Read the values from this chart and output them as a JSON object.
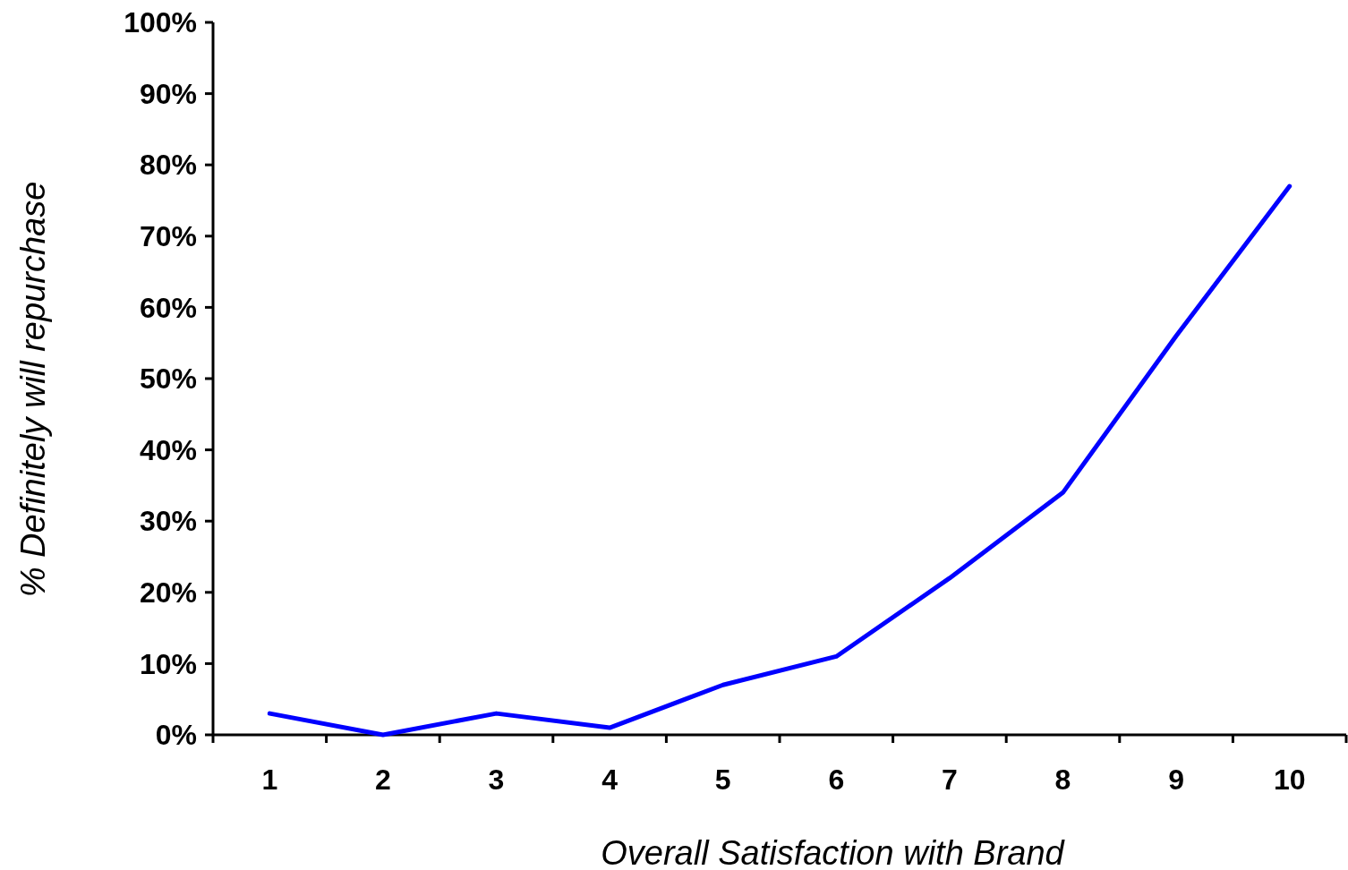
{
  "chart_data": {
    "type": "line",
    "xlabel": "Overall Satisfaction with Brand",
    "ylabel": "% Definitely will repurchase",
    "categories": [
      "1",
      "2",
      "3",
      "4",
      "5",
      "6",
      "7",
      "8",
      "9",
      "10"
    ],
    "series": [
      {
        "color": "#0000ff",
        "values": [
          3,
          0,
          3,
          1,
          7,
          11,
          22,
          34,
          56,
          77
        ]
      }
    ],
    "ylim": [
      0,
      100
    ],
    "yticks": [
      {
        "value": 0,
        "label": "0%"
      },
      {
        "value": 10,
        "label": "10%"
      },
      {
        "value": 20,
        "label": "20%"
      },
      {
        "value": 30,
        "label": "30%"
      },
      {
        "value": 40,
        "label": "40%"
      },
      {
        "value": 50,
        "label": "50%"
      },
      {
        "value": 60,
        "label": "60%"
      },
      {
        "value": 70,
        "label": "70%"
      },
      {
        "value": 80,
        "label": "80%"
      },
      {
        "value": 90,
        "label": "90%"
      },
      {
        "value": 100,
        "label": "100%"
      }
    ],
    "grid": false,
    "marker": "none",
    "line_style": "solid"
  }
}
